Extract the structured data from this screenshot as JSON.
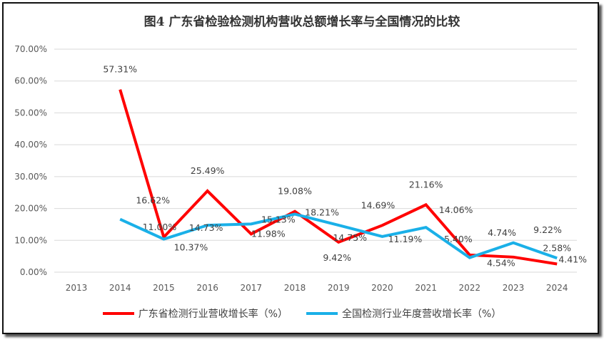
{
  "chart_data": {
    "type": "line",
    "title": "图4  广东省检验检测机构营收总额增长率与全国情况的比较",
    "x": [
      "2013",
      "2014",
      "2015",
      "2016",
      "2017",
      "2018",
      "2019",
      "2020",
      "2021",
      "2022",
      "2023",
      "2024"
    ],
    "ylim": [
      0,
      70
    ],
    "yticks": [
      "0.00%",
      "10.00%",
      "20.00%",
      "30.00%",
      "40.00%",
      "50.00%",
      "60.00%",
      "70.00%"
    ],
    "grid": true,
    "legend_position": "bottom",
    "series": [
      {
        "name": "广东省检测行业营收增长率（%）",
        "color": "#ff0000",
        "values": [
          null,
          57.31,
          11.0,
          25.49,
          11.98,
          19.08,
          9.42,
          14.69,
          21.16,
          5.4,
          4.74,
          2.58
        ],
        "labels": [
          "",
          "57.31%",
          "11.00%",
          "25.49%",
          "11.98%",
          "19.08%",
          "9.42%",
          "14.69%",
          "21.16%",
          "5.40%",
          "4.74%",
          "2.58%"
        ]
      },
      {
        "name": "全国检测行业年度营收增长率（%）",
        "color": "#1ab0e8",
        "values": [
          null,
          16.62,
          10.37,
          14.73,
          15.13,
          18.21,
          14.75,
          11.19,
          14.06,
          4.54,
          9.22,
          4.41
        ],
        "labels": [
          "",
          "16.62%",
          "10.37%",
          "14.73%",
          "15.13%",
          "18.21%",
          "14.75%",
          "11.19%",
          "14.06%",
          "4.54%",
          "9.22%",
          "4.41%"
        ]
      }
    ]
  }
}
